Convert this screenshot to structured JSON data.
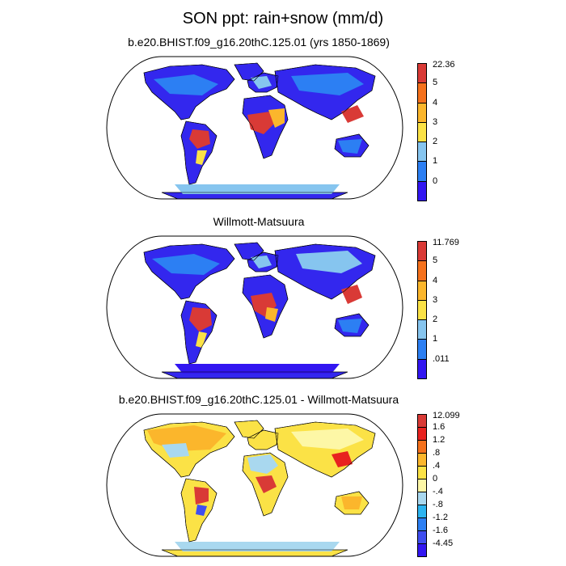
{
  "title": "SON ppt: rain+snow (mm/d)",
  "panels": [
    {
      "id": "model",
      "title": "b.e20.BHIST.f09_g16.20thC.125.01 (yrs 1850-1869)",
      "legend": {
        "labels": [
          "22.36",
          "5",
          "4",
          "3",
          "2",
          "1",
          "0"
        ],
        "colors": [
          "#d93a36",
          "#f5711c",
          "#fbb62c",
          "#fbe246",
          "#86c5ef",
          "#2c7ff3",
          "#3216f1"
        ]
      },
      "background_color": "#3327ee"
    },
    {
      "id": "obs",
      "title": "Willmott-Matsuura",
      "legend": {
        "labels": [
          "11.769",
          "5",
          "4",
          "3",
          "2",
          "1",
          ".011"
        ],
        "colors": [
          "#d93a36",
          "#f5711c",
          "#fbb62c",
          "#fbe246",
          "#86c5ef",
          "#2c7ff3",
          "#3216f1"
        ]
      },
      "background_color": "#3327ee"
    },
    {
      "id": "diff",
      "title": "b.e20.BHIST.f09_g16.20thC.125.01 - Willmott-Matsuura",
      "legend": {
        "labels": [
          "12.099",
          "1.6",
          "1.2",
          ".8",
          ".4",
          "0",
          "-.4",
          "-.8",
          "-1.2",
          "-1.6",
          "-4.45"
        ],
        "colors": [
          "#d93a36",
          "#e8221f",
          "#f5711c",
          "#fbb62c",
          "#fbe246",
          "#fdf7a6",
          "#a9d8ef",
          "#2cb4f0",
          "#2c7ff3",
          "#3f4ef0",
          "#3216f1"
        ]
      },
      "background_color": "#fbe246"
    }
  ]
}
